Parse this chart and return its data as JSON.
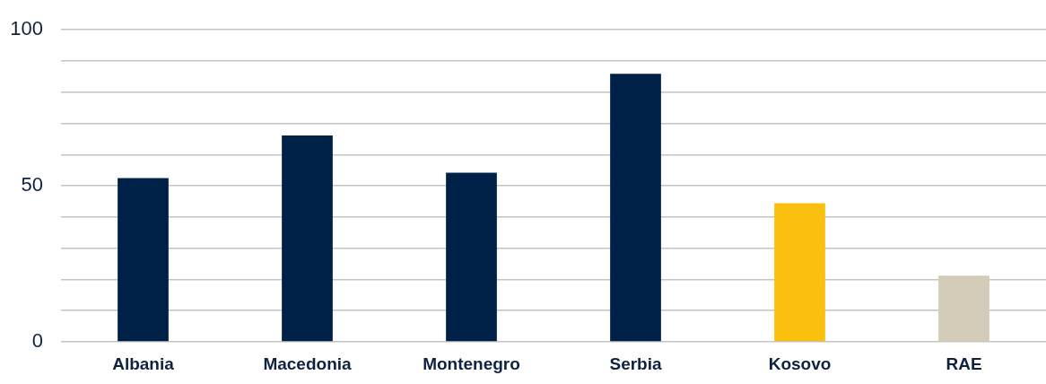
{
  "chart_data": {
    "type": "bar",
    "categories": [
      "Albania",
      "Macedonia",
      "Montenegro",
      "Serbia",
      "Kosovo",
      "RAE"
    ],
    "values": [
      52.5,
      66.1,
      54.2,
      85.9,
      44.4,
      21.2
    ],
    "colors": [
      "#002147",
      "#002147",
      "#002147",
      "#002147",
      "#fbbf10",
      "#d3ccb8"
    ],
    "ylim": [
      0,
      100
    ],
    "yticks": [
      0,
      {
        "value": 10,
        "label": null
      },
      {
        "value": 20,
        "label": null
      },
      {
        "value": 30,
        "label": null
      },
      {
        "value": 40,
        "label": null
      },
      50,
      {
        "value": 60,
        "label": null
      },
      {
        "value": 70,
        "label": null
      },
      {
        "value": 80,
        "label": null
      },
      {
        "value": 90,
        "label": null
      },
      100
    ],
    "grid": "y"
  }
}
